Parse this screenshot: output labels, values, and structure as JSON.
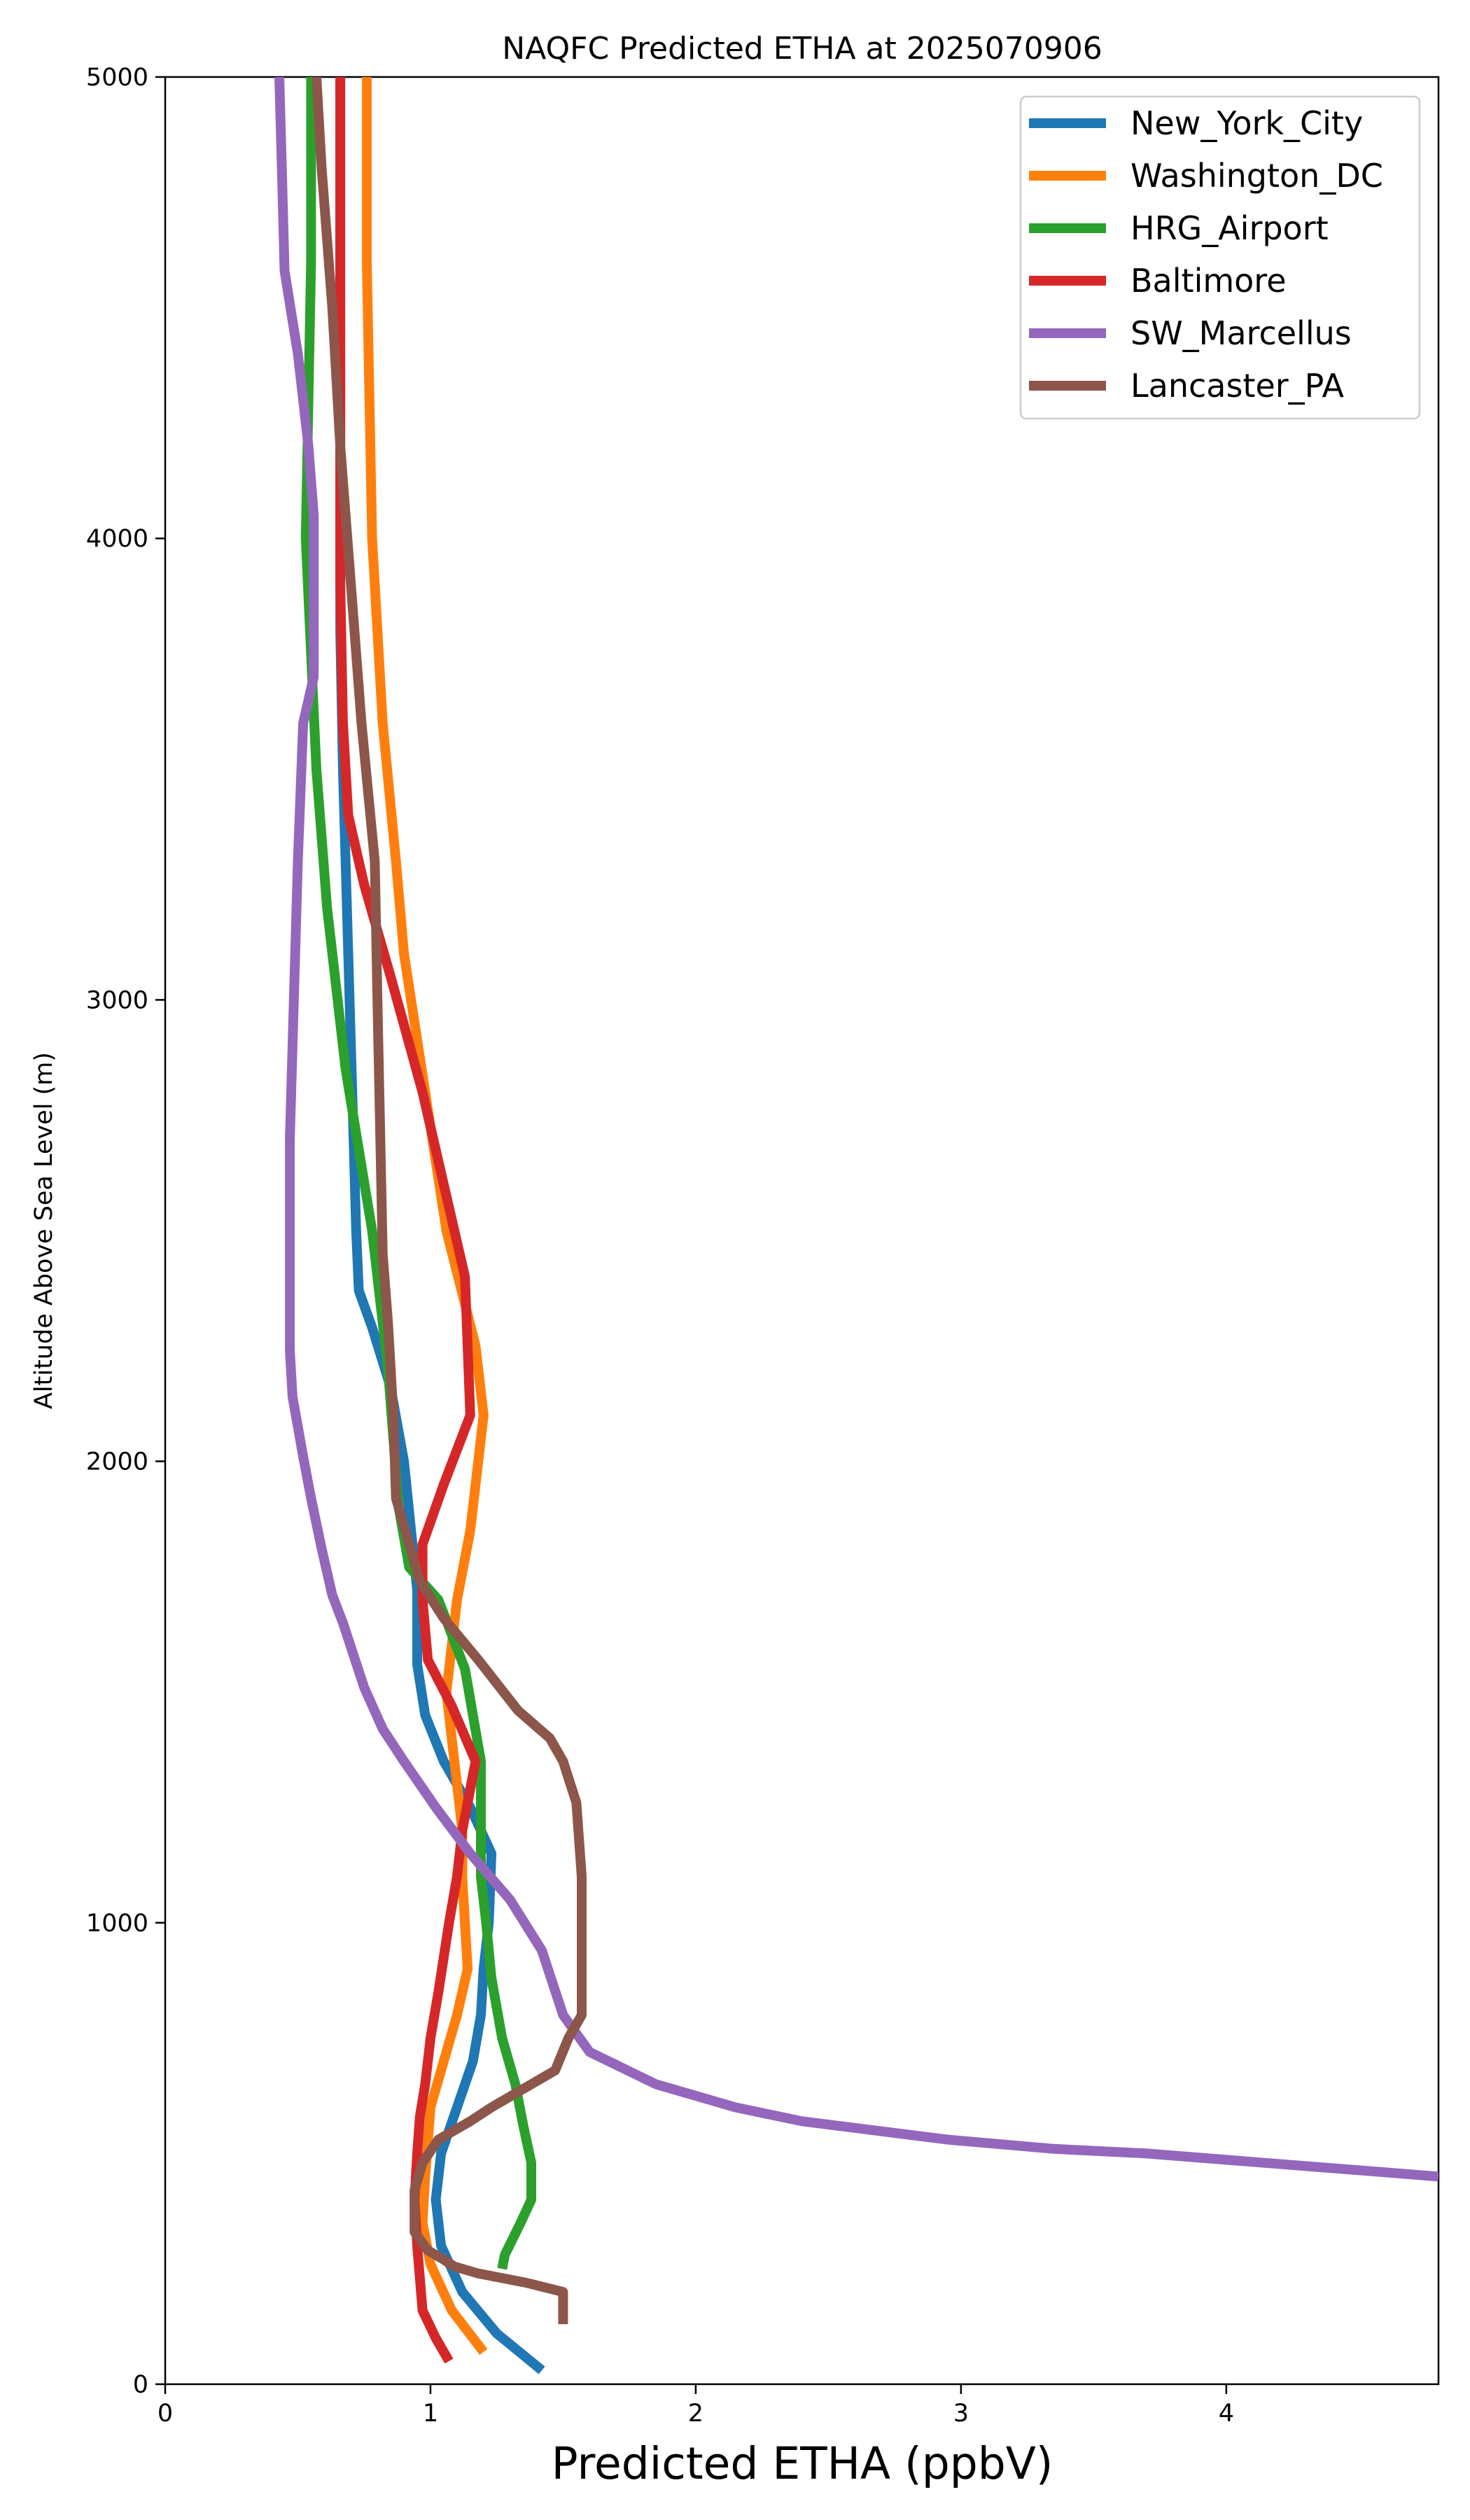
{
  "chart_data": {
    "type": "line",
    "title": "NAQFC Predicted ETHA at 2025070906",
    "xlabel": "Predicted ETHA (ppbV)",
    "ylabel": "Altitude Above Sea Level (m)",
    "xlim": [
      0,
      4.8
    ],
    "ylim": [
      0,
      5000
    ],
    "xticks": [
      0,
      1,
      2,
      3,
      4
    ],
    "yticks": [
      0,
      1000,
      2000,
      3000,
      4000,
      5000
    ],
    "legend_position": "top-right",
    "grid": false,
    "series": [
      {
        "name": "New_York_City",
        "color": "#1f77b4",
        "points": [
          [
            1.42,
            30
          ],
          [
            1.25,
            110
          ],
          [
            1.12,
            200
          ],
          [
            1.04,
            300
          ],
          [
            1.02,
            400
          ],
          [
            1.04,
            500
          ],
          [
            1.1,
            600
          ],
          [
            1.16,
            700
          ],
          [
            1.19,
            800
          ],
          [
            1.2,
            900
          ],
          [
            1.22,
            1000
          ],
          [
            1.23,
            1150
          ],
          [
            1.15,
            1250
          ],
          [
            1.05,
            1350
          ],
          [
            0.98,
            1450
          ],
          [
            0.95,
            1560
          ],
          [
            0.95,
            1720
          ],
          [
            0.9,
            2000
          ],
          [
            0.85,
            2160
          ],
          [
            0.78,
            2290
          ],
          [
            0.73,
            2370
          ],
          [
            0.72,
            2500
          ],
          [
            0.71,
            2700
          ],
          [
            0.7,
            2900
          ],
          [
            0.69,
            3100
          ],
          [
            0.68,
            3300
          ],
          [
            0.67,
            3500
          ],
          [
            0.66,
            3800
          ],
          [
            0.66,
            4000
          ],
          [
            0.66,
            4300
          ],
          [
            0.66,
            4600
          ],
          [
            0.66,
            5000
          ]
        ]
      },
      {
        "name": "Washington_DC",
        "color": "#ff7f0e",
        "points": [
          [
            1.2,
            70
          ],
          [
            1.08,
            160
          ],
          [
            1.0,
            260
          ],
          [
            0.97,
            350
          ],
          [
            0.98,
            450
          ],
          [
            1.0,
            600
          ],
          [
            1.05,
            700
          ],
          [
            1.1,
            800
          ],
          [
            1.14,
            900
          ],
          [
            1.13,
            1000
          ],
          [
            1.12,
            1100
          ],
          [
            1.12,
            1200
          ],
          [
            1.1,
            1300
          ],
          [
            1.08,
            1400
          ],
          [
            1.06,
            1500
          ],
          [
            1.1,
            1700
          ],
          [
            1.15,
            1850
          ],
          [
            1.2,
            2100
          ],
          [
            1.17,
            2250
          ],
          [
            1.06,
            2500
          ],
          [
            0.98,
            2800
          ],
          [
            0.9,
            3100
          ],
          [
            0.87,
            3300
          ],
          [
            0.82,
            3600
          ],
          [
            0.79,
            3900
          ],
          [
            0.78,
            4000
          ],
          [
            0.77,
            4300
          ],
          [
            0.76,
            4600
          ],
          [
            0.76,
            5000
          ]
        ]
      },
      {
        "name": "HRG_Airport",
        "color": "#2ca02c",
        "points": [
          [
            1.27,
            250
          ],
          [
            1.28,
            280
          ],
          [
            1.34,
            350
          ],
          [
            1.38,
            400
          ],
          [
            1.38,
            480
          ],
          [
            1.35,
            560
          ],
          [
            1.32,
            650
          ],
          [
            1.27,
            750
          ],
          [
            1.23,
            880
          ],
          [
            1.21,
            1000
          ],
          [
            1.19,
            1100
          ],
          [
            1.19,
            1350
          ],
          [
            1.13,
            1550
          ],
          [
            1.03,
            1700
          ],
          [
            0.92,
            1770
          ],
          [
            0.88,
            1900
          ],
          [
            0.84,
            2200
          ],
          [
            0.78,
            2500
          ],
          [
            0.68,
            2850
          ],
          [
            0.61,
            3200
          ],
          [
            0.57,
            3500
          ],
          [
            0.53,
            4000
          ],
          [
            0.54,
            4300
          ],
          [
            0.55,
            4600
          ],
          [
            0.55,
            5000
          ]
        ]
      },
      {
        "name": "Baltimore",
        "color": "#d62728",
        "points": [
          [
            1.07,
            50
          ],
          [
            1.02,
            100
          ],
          [
            0.97,
            160
          ],
          [
            0.96,
            230
          ],
          [
            0.95,
            300
          ],
          [
            0.94,
            400
          ],
          [
            0.95,
            500
          ],
          [
            0.96,
            580
          ],
          [
            0.98,
            650
          ],
          [
            1.0,
            750
          ],
          [
            1.03,
            850
          ],
          [
            1.07,
            1000
          ],
          [
            1.1,
            1100
          ],
          [
            1.12,
            1200
          ],
          [
            1.17,
            1350
          ],
          [
            1.08,
            1470
          ],
          [
            0.99,
            1570
          ],
          [
            0.97,
            1700
          ],
          [
            0.97,
            1820
          ],
          [
            1.05,
            1950
          ],
          [
            1.15,
            2100
          ],
          [
            1.14,
            2250
          ],
          [
            1.13,
            2400
          ],
          [
            1.05,
            2600
          ],
          [
            0.97,
            2800
          ],
          [
            0.85,
            3050
          ],
          [
            0.75,
            3250
          ],
          [
            0.69,
            3400
          ],
          [
            0.67,
            3600
          ],
          [
            0.66,
            3900
          ],
          [
            0.66,
            4100
          ],
          [
            0.66,
            4400
          ],
          [
            0.66,
            4700
          ],
          [
            0.66,
            5000
          ]
        ]
      },
      {
        "name": "SW_Marcellus",
        "color": "#9467bd",
        "points": [
          [
            4.8,
            450
          ],
          [
            3.7,
            500
          ],
          [
            3.35,
            510
          ],
          [
            2.95,
            530
          ],
          [
            2.4,
            570
          ],
          [
            2.15,
            600
          ],
          [
            1.85,
            650
          ],
          [
            1.6,
            720
          ],
          [
            1.5,
            800
          ],
          [
            1.42,
            940
          ],
          [
            1.3,
            1050
          ],
          [
            1.15,
            1150
          ],
          [
            1.02,
            1250
          ],
          [
            0.9,
            1350
          ],
          [
            0.82,
            1420
          ],
          [
            0.75,
            1510
          ],
          [
            0.67,
            1650
          ],
          [
            0.63,
            1710
          ],
          [
            0.59,
            1810
          ],
          [
            0.55,
            1920
          ],
          [
            0.52,
            2010
          ],
          [
            0.48,
            2140
          ],
          [
            0.47,
            2240
          ],
          [
            0.47,
            2420
          ],
          [
            0.47,
            2700
          ],
          [
            0.48,
            2900
          ],
          [
            0.49,
            3100
          ],
          [
            0.5,
            3300
          ],
          [
            0.52,
            3600
          ],
          [
            0.56,
            3700
          ],
          [
            0.56,
            4050
          ],
          [
            0.54,
            4200
          ],
          [
            0.5,
            4400
          ],
          [
            0.45,
            4580
          ],
          [
            0.44,
            4800
          ],
          [
            0.43,
            5000
          ]
        ]
      },
      {
        "name": "Lancaster_PA",
        "color": "#8c564b",
        "points": [
          [
            1.5,
            130
          ],
          [
            1.5,
            200
          ],
          [
            1.36,
            220
          ],
          [
            1.18,
            240
          ],
          [
            1.09,
            255
          ],
          [
            1.05,
            270
          ],
          [
            0.99,
            290
          ],
          [
            0.94,
            330
          ],
          [
            0.94,
            420
          ],
          [
            0.97,
            480
          ],
          [
            1.03,
            530
          ],
          [
            1.15,
            570
          ],
          [
            1.23,
            600
          ],
          [
            1.35,
            640
          ],
          [
            1.47,
            680
          ],
          [
            1.52,
            750
          ],
          [
            1.57,
            800
          ],
          [
            1.57,
            900
          ],
          [
            1.57,
            1000
          ],
          [
            1.57,
            1100
          ],
          [
            1.55,
            1260
          ],
          [
            1.5,
            1350
          ],
          [
            1.45,
            1400
          ],
          [
            1.33,
            1460
          ],
          [
            1.18,
            1570
          ],
          [
            1.05,
            1660
          ],
          [
            0.96,
            1740
          ],
          [
            0.91,
            1840
          ],
          [
            0.87,
            1920
          ],
          [
            0.86,
            2100
          ],
          [
            0.84,
            2300
          ],
          [
            0.82,
            2450
          ],
          [
            0.8,
            3000
          ],
          [
            0.79,
            3300
          ],
          [
            0.74,
            3600
          ],
          [
            0.7,
            3900
          ],
          [
            0.66,
            4200
          ],
          [
            0.63,
            4500
          ],
          [
            0.59,
            4800
          ],
          [
            0.57,
            5000
          ]
        ]
      }
    ]
  }
}
